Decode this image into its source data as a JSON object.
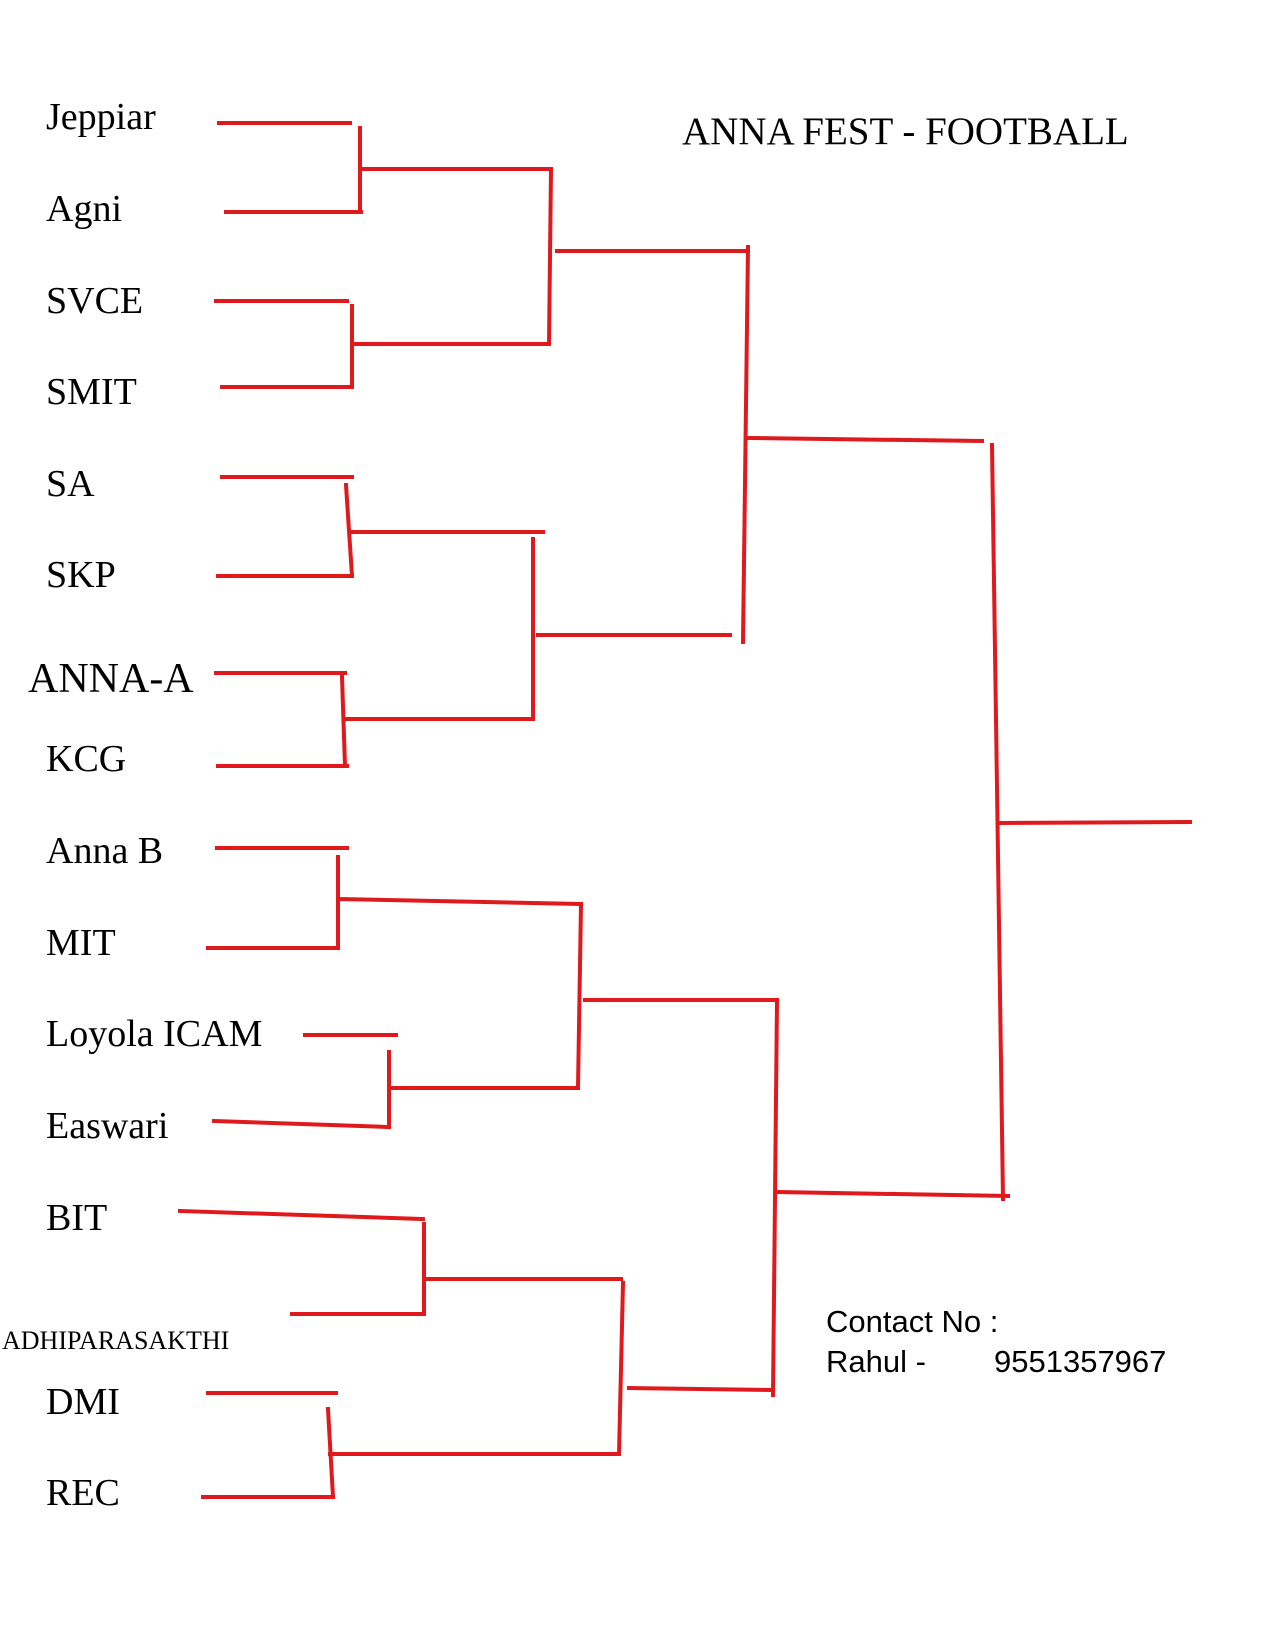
{
  "title": "ANNA FEST - FOOTBALL",
  "line_color": "#e0191c",
  "teams": [
    "Jeppiar",
    "Agni",
    "SVCE",
    "SMIT",
    "SA",
    "SKP",
    "ANNA-A",
    "KCG",
    "Anna B",
    "MIT",
    "Loyola ICAM",
    "Easwari",
    "BIT",
    "ADHIPARASAKTHI",
    "DMI",
    "REC"
  ],
  "contact": {
    "heading": "Contact No :",
    "name": "Rahul -",
    "number": "9551357967"
  }
}
